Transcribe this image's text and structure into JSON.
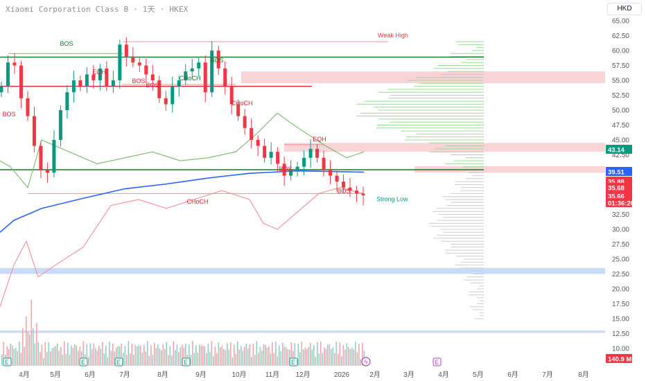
{
  "header": {
    "title": "Xiaomi Corporation Class B · 1天 · HKEX",
    "currency": "HKD"
  },
  "colors": {
    "up": "#089981",
    "down": "#f23645",
    "ma_blue": "#2962ff",
    "green_band": "#77b96a",
    "red_band": "#ef8f95",
    "green_line": "#0f7a25",
    "red_line": "#e0202f",
    "zone_red": "#f7c6ca",
    "zone_blue": "#c5d6f7",
    "vp_green": "#9ed69b",
    "vp_gray": "#c9ccd4"
  },
  "chart_data": {
    "type": "candlestick",
    "title": "Xiaomi Corporation Class B",
    "interval": "1天",
    "exchange": "HKEX",
    "y_axis": {
      "min": 10,
      "max": 65,
      "ticks": [
        "65.00",
        "62.50",
        "60.00",
        "57.50",
        "55.00",
        "52.50",
        "50.00",
        "47.50",
        "45.00",
        "42.50",
        "40.00",
        "37.50",
        "35.00",
        "32.50",
        "30.00",
        "27.50",
        "25.00",
        "22.50",
        "20.00",
        "17.50",
        "15.00",
        "12.50",
        "10.00"
      ]
    },
    "x_axis": {
      "labels": [
        "4月",
        "5月",
        "6月",
        "7月",
        "8月",
        "9月",
        "10月",
        "11月",
        "12月",
        "2026",
        "2月",
        "3月",
        "4月",
        "5月",
        "6月",
        "7月",
        "8月"
      ]
    },
    "close_series": [
      54,
      58,
      57.5,
      52,
      49,
      44,
      40,
      39.5,
      45,
      50,
      53,
      55,
      54,
      56,
      55,
      57,
      54,
      55,
      61,
      59,
      58,
      57.5,
      56,
      55,
      52,
      51,
      54,
      55,
      56.5,
      57,
      58,
      53,
      60,
      57,
      54,
      51,
      49,
      47,
      45,
      44,
      42,
      43,
      41,
      39,
      40,
      40.5,
      42,
      43.5,
      42,
      40,
      39,
      38,
      37,
      36.5,
      36,
      35.7
    ],
    "price_tags": [
      {
        "value": "43.14",
        "color": "#089981"
      },
      {
        "value": "39.51",
        "color": "#2962ff"
      },
      {
        "value": "35.88",
        "color": "#f23645"
      },
      {
        "value": "35.68",
        "color": "#f23645"
      },
      {
        "value": "35.66",
        "color": "#f23645"
      },
      {
        "value": "01:36:20",
        "color": "#f23645"
      },
      {
        "value": "140.9 M",
        "color": "#f23645"
      }
    ],
    "horizontal_levels": [
      {
        "label": "Weak High",
        "value": 61.5,
        "color": "#ef8f95"
      },
      {
        "label": "",
        "value": 58.9,
        "color": "#0f7a25"
      },
      {
        "label": "",
        "value": 54.0,
        "color": "#e0202f"
      },
      {
        "label": "",
        "value": 40.0,
        "color": "#0f7a25"
      },
      {
        "label": "Strong Low",
        "value": 36.0,
        "color": "#ef8f95"
      }
    ],
    "annotations": [
      {
        "text": "BOS",
        "color": "#0f7a25"
      },
      {
        "text": "EQH",
        "color": "#e0202f"
      },
      {
        "text": "BOS",
        "color": "#e0202f"
      },
      {
        "text": "BOS",
        "color": "#e0202f"
      },
      {
        "text": "CHoCH",
        "color": "#0f7a25"
      },
      {
        "text": "BOS",
        "color": "#0f7a25"
      },
      {
        "text": "CHoCH",
        "color": "#e0202f"
      },
      {
        "text": "BOS",
        "color": "#e0202f"
      },
      {
        "text": "EQH",
        "color": "#e0202f"
      },
      {
        "text": "BOS",
        "color": "#e0202f"
      },
      {
        "text": "CHoCH",
        "color": "#e0202f"
      },
      {
        "text": "BOS",
        "color": "#e0202f"
      }
    ],
    "level_labels": [
      "Weak High",
      "Strong Low"
    ],
    "grid": false
  }
}
